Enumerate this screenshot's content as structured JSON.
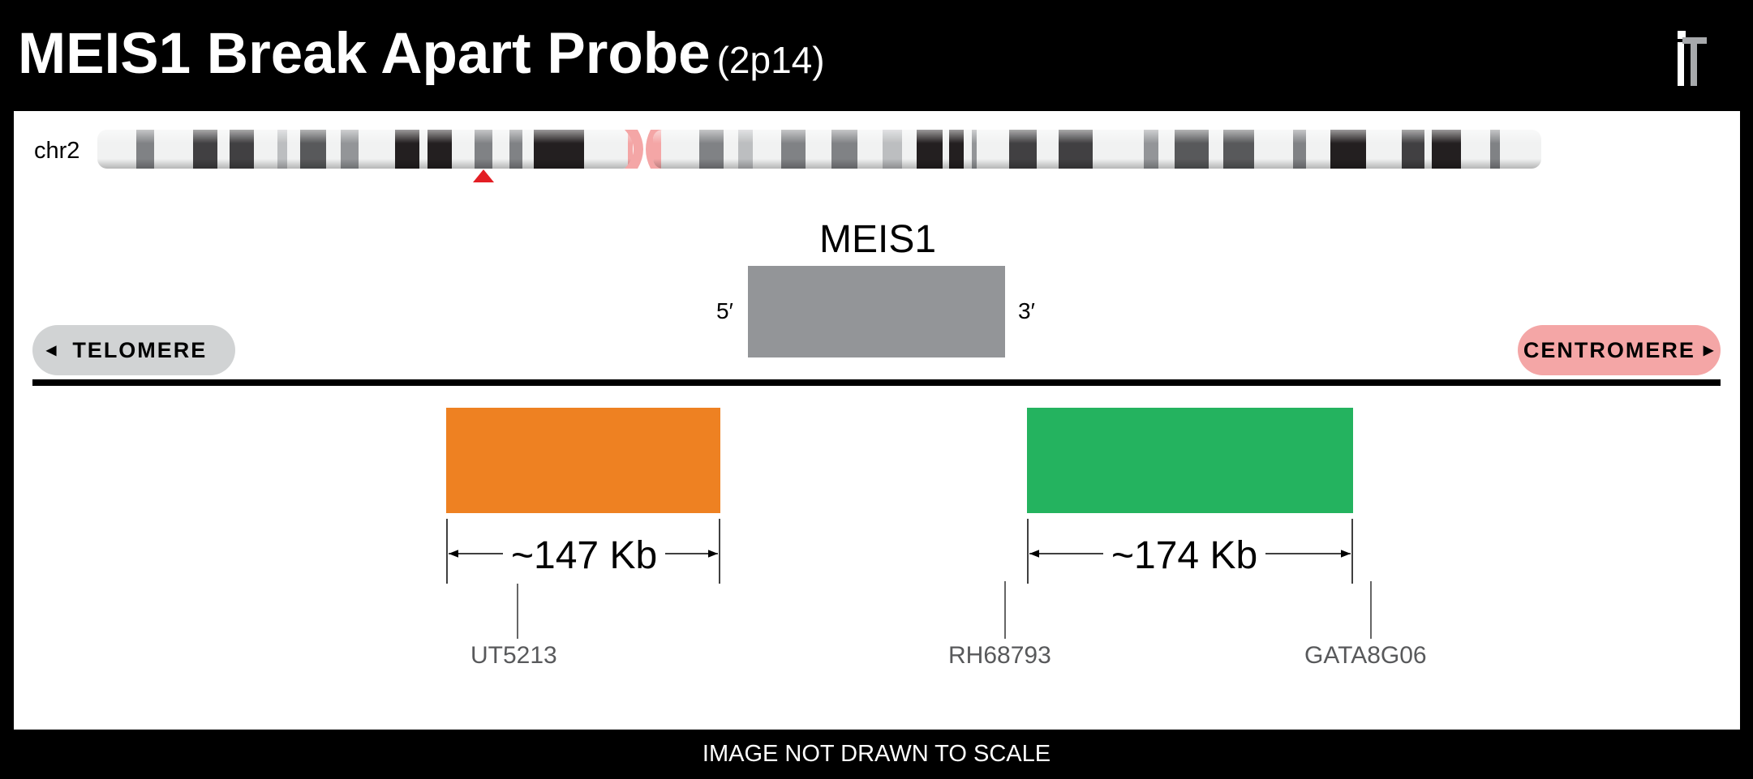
{
  "header": {
    "title": "MEIS1 Break Apart Probe",
    "location": "(2p14)"
  },
  "chromosome": {
    "label": "chr2",
    "centromere_color": "#f4a6a6",
    "marker_color": "#e31e24"
  },
  "gene": {
    "name": "MEIS1",
    "five_prime": "5′",
    "three_prime": "3′",
    "color": "#939598"
  },
  "orientation": {
    "telomere": "TELOMERE",
    "centromere": "CENTROMERE"
  },
  "probes": [
    {
      "color": "#ee8122",
      "size": "~147 Kb"
    },
    {
      "color": "#24b35f",
      "size": "~174 Kb"
    }
  ],
  "markers": [
    "UT5213",
    "RH68793",
    "GATA8G06"
  ],
  "footer": {
    "note": "IMAGE NOT DRAWN TO SCALE"
  }
}
